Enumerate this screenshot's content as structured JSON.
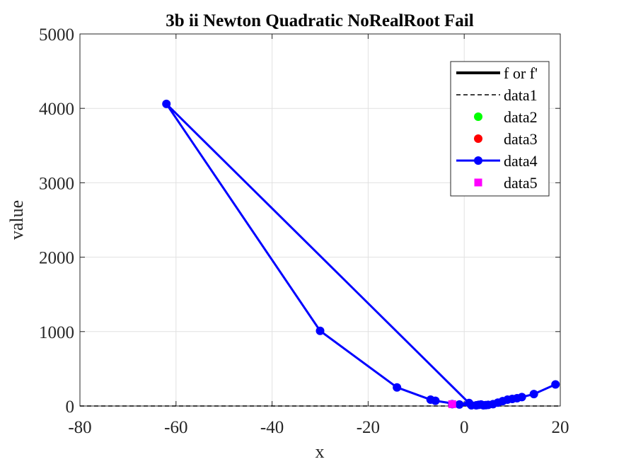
{
  "chart_data": {
    "type": "line",
    "title": "3b ii Newton Quadratic NoRealRoot Fail",
    "xlabel": "x",
    "ylabel": "value",
    "xlim": [
      -80,
      20
    ],
    "ylim": [
      0,
      5000
    ],
    "xticks": [
      -80,
      -60,
      -40,
      -20,
      0,
      20
    ],
    "yticks": [
      0,
      1000,
      2000,
      3000,
      4000,
      5000
    ],
    "xtick_labels": [
      "-80",
      "-60",
      "-40",
      "-20",
      "0",
      "20"
    ],
    "ytick_labels": [
      "0",
      "1000",
      "2000",
      "3000",
      "4000",
      "5000"
    ],
    "grid": true,
    "legend_position": "top-right",
    "legend": [
      {
        "label": "f or f'",
        "style": "solid-line",
        "color": "#000000"
      },
      {
        "label": "data1",
        "style": "dashed-line",
        "color": "#000000"
      },
      {
        "label": "data2",
        "style": "marker-circle",
        "color": "#00ff00"
      },
      {
        "label": "data3",
        "style": "marker-circle",
        "color": "#ff0000"
      },
      {
        "label": "data4",
        "style": "line-marker-circle",
        "color": "#0000ff"
      },
      {
        "label": "data5",
        "style": "marker-square",
        "color": "#ff00ff"
      }
    ],
    "series": [
      {
        "name": "data1",
        "style": "dashed-line",
        "color": "#000000",
        "x": [
          -80,
          20
        ],
        "y": [
          0,
          0
        ]
      },
      {
        "name": "data4",
        "style": "line-marker-circle",
        "color": "#0000ff",
        "x": [
          -2.5,
          1.0,
          -62.0,
          -30.0,
          -14.0,
          -7.0,
          -6.0,
          -1.0,
          1.5,
          2.5,
          3.0,
          3.5,
          4.0,
          4.5,
          5.0,
          6.0,
          7.0,
          8.0,
          9.0,
          10.0,
          11.0,
          12.0,
          14.5,
          19.0
        ],
        "y": [
          25,
          40,
          4060,
          1010,
          250,
          85,
          70,
          20,
          10,
          10,
          15,
          20,
          10,
          12,
          15,
          25,
          45,
          65,
          85,
          95,
          105,
          120,
          160,
          290
        ]
      },
      {
        "name": "data5",
        "style": "marker-square",
        "color": "#ff00ff",
        "x": [
          -2.5
        ],
        "y": [
          25
        ]
      }
    ]
  }
}
